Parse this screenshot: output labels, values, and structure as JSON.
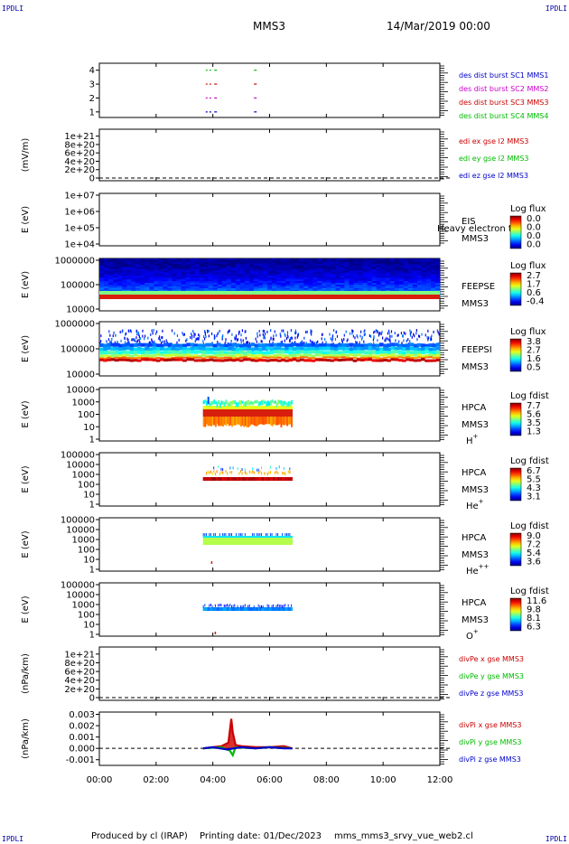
{
  "corner_label": "IPDLI",
  "header": {
    "spacecraft": "MMS3",
    "datetime": "14/Mar/2019 00:00"
  },
  "footer": {
    "producer": "Produced by cl (IRAP)",
    "printing": "Printing date: 01/Dec/2023",
    "config": "mms_mms3_srvy_vue_web2.cl"
  },
  "chart_data": [
    {
      "type": "scatter",
      "ylim": [
        0.6,
        4.5
      ],
      "y_ticks": [
        "1",
        "2",
        "3",
        "4"
      ],
      "legend": [
        {
          "text": "des dist burst SC1 MMS1",
          "color": "#0000cc"
        },
        {
          "text": "des dist burst SC2 MMS2",
          "color": "#cc00cc"
        },
        {
          "text": "des dist burst SC3 MMS3",
          "color": "#cc0000"
        },
        {
          "text": "des dist burst SC4 MMS4",
          "color": "#00bb00"
        }
      ],
      "series": [
        {
          "level": 4,
          "color": "#00bb00",
          "x": [
            3.75,
            4.05,
            5.45
          ]
        },
        {
          "level": 3,
          "color": "#cc0000",
          "x": [
            3.75,
            4.05,
            5.45
          ]
        },
        {
          "level": 2,
          "color": "#cc00cc",
          "x": [
            3.75,
            4.05,
            5.45
          ]
        },
        {
          "level": 1,
          "color": "#0000cc",
          "x": [
            3.75,
            4.05,
            5.45
          ]
        }
      ]
    },
    {
      "type": "line",
      "ylabel": "(mV/m)",
      "ylim": [
        0,
        1.1e+21
      ],
      "y_ticks": [
        "1e+21",
        "8e+20",
        "6e+20",
        "4e+20",
        "2e+20",
        "0"
      ],
      "y_values": [
        1e+21,
        8e+20,
        6e+20,
        4e+20,
        2e+20,
        0
      ],
      "zero_line": true,
      "legend": [
        {
          "text": "edi ex gse l2 MMS3",
          "color": "#cc0000"
        },
        {
          "text": "edi ey gse l2 MMS3",
          "color": "#00bb00"
        },
        {
          "text": "edi ez gse l2 MMS3",
          "color": "#0000cc"
        }
      ]
    },
    {
      "type": "heatmap",
      "ylabel": "E (eV)",
      "y_ticks": [
        "1e+07",
        "1e+06",
        "1e+05",
        "1e+04"
      ],
      "instrument": "EIS",
      "spacecraft": "MMS3",
      "overlay_text": "Heavy electron to",
      "colorbar_title": "Log flux",
      "colorbar_ticks": [
        "0.0",
        "0.0",
        "0.0",
        "0.0"
      ]
    },
    {
      "type": "heatmap",
      "ylabel": "E (eV)",
      "y_ticks": [
        "1000000",
        "100000",
        "10000"
      ],
      "instrument": "FEEPSE",
      "spacecraft": "MMS3",
      "colorbar_title": "Log flux",
      "colorbar_ticks": [
        "2.7",
        "1.7",
        "0.6",
        "-0.4"
      ],
      "x_range": [
        0,
        12
      ]
    },
    {
      "type": "heatmap",
      "ylabel": "E (eV)",
      "y_ticks": [
        "1000000",
        "100000",
        "10000"
      ],
      "instrument": "FEEPSI",
      "spacecraft": "MMS3",
      "colorbar_title": "Log flux",
      "colorbar_ticks": [
        "3.8",
        "2.7",
        "1.6",
        "0.5"
      ],
      "x_range": [
        0,
        12
      ]
    },
    {
      "type": "heatmap",
      "ylabel": "E (eV)",
      "y_ticks": [
        "10000",
        "1000",
        "100",
        "10",
        "1"
      ],
      "instrument": "HPCA",
      "spacecraft": "MMS3",
      "species": "H",
      "charge": "+",
      "colorbar_title": "Log fdist",
      "colorbar_ticks": [
        "7.7",
        "5.6",
        "3.5",
        "1.3"
      ],
      "x_range": [
        3.65,
        6.8
      ]
    },
    {
      "type": "heatmap",
      "ylabel": "E (eV)",
      "y_ticks": [
        "100000",
        "10000",
        "1000",
        "100",
        "10",
        "1"
      ],
      "instrument": "HPCA",
      "spacecraft": "MMS3",
      "species": "He",
      "charge": "+",
      "colorbar_title": "Log fdist",
      "colorbar_ticks": [
        "6.7",
        "5.5",
        "4.3",
        "3.1"
      ],
      "x_range": [
        3.65,
        6.8
      ]
    },
    {
      "type": "heatmap",
      "ylabel": "E (eV)",
      "y_ticks": [
        "100000",
        "10000",
        "1000",
        "100",
        "10",
        "1"
      ],
      "instrument": "HPCA",
      "spacecraft": "MMS3",
      "species": "He",
      "charge": "++",
      "colorbar_title": "Log fdist",
      "colorbar_ticks": [
        "9.0",
        "7.2",
        "5.4",
        "3.6"
      ],
      "x_range": [
        3.65,
        6.8
      ]
    },
    {
      "type": "heatmap",
      "ylabel": "E (eV)",
      "y_ticks": [
        "100000",
        "10000",
        "1000",
        "100",
        "10",
        "1"
      ],
      "instrument": "HPCA",
      "spacecraft": "MMS3",
      "species": "O",
      "charge": "+",
      "colorbar_title": "Log fdist",
      "colorbar_ticks": [
        "11.6",
        "9.8",
        "8.1",
        "6.3"
      ],
      "x_range": [
        3.65,
        6.8
      ]
    },
    {
      "type": "line",
      "ylabel": "(nPa/km)",
      "ylim": [
        0,
        1.1e+21
      ],
      "y_ticks": [
        "1e+21",
        "8e+20",
        "6e+20",
        "4e+20",
        "2e+20",
        "0"
      ],
      "y_values": [
        1e+21,
        8e+20,
        6e+20,
        4e+20,
        2e+20,
        0
      ],
      "zero_line": true,
      "legend": [
        {
          "text": "divPe x gse MMS3",
          "color": "#cc0000"
        },
        {
          "text": "divPe y gse MMS3",
          "color": "#00bb00"
        },
        {
          "text": "divPe z gse MMS3",
          "color": "#0000cc"
        }
      ]
    },
    {
      "type": "line",
      "ylabel": "(nPa/km)",
      "ylim": [
        -0.0015,
        0.0032
      ],
      "y_ticks": [
        "0.003",
        "0.002",
        "0.001",
        "0.000",
        "-0.001"
      ],
      "y_values": [
        0.003,
        0.002,
        0.001,
        0,
        -0.001
      ],
      "zero_line": true,
      "legend": [
        {
          "text": "divPi x gse MMS3",
          "color": "#cc0000"
        },
        {
          "text": "divPi y gse MMS3",
          "color": "#00bb00"
        },
        {
          "text": "divPi z gse MMS3",
          "color": "#0000cc"
        }
      ],
      "series": [
        {
          "name": "divPi x gse MMS3",
          "color": "#cc0000",
          "x": [
            3.65,
            4.3,
            4.55,
            4.65,
            4.7,
            4.8,
            5.0,
            5.5,
            6.0,
            6.5,
            6.8
          ],
          "y": [
            0.0,
            0.0002,
            0.0005,
            0.0026,
            0.0014,
            0.0003,
            0.0002,
            0.0001,
            0.0001,
            0.0002,
            0.0
          ]
        },
        {
          "name": "divPi y gse MMS3",
          "color": "#00bb00",
          "x": [
            3.65,
            4.3,
            4.6,
            4.7,
            4.8,
            5.5,
            6.0,
            6.8
          ],
          "y": [
            0.0,
            0.0001,
            -0.0002,
            -0.0006,
            0.0001,
            0.0,
            0.0001,
            0.0
          ]
        },
        {
          "name": "divPi z gse MMS3",
          "color": "#0000cc",
          "x": [
            3.65,
            4.0,
            4.5,
            5.0,
            5.5,
            6.0,
            6.5,
            6.8
          ],
          "y": [
            0.0,
            0.0001,
            -0.0001,
            0.0001,
            0.0,
            0.0001,
            0.0,
            0.0
          ]
        }
      ]
    }
  ],
  "x_axis": {
    "ticks": [
      "00:00",
      "02:00",
      "04:00",
      "06:00",
      "08:00",
      "10:00",
      "12:00"
    ],
    "range": [
      0,
      12
    ]
  }
}
